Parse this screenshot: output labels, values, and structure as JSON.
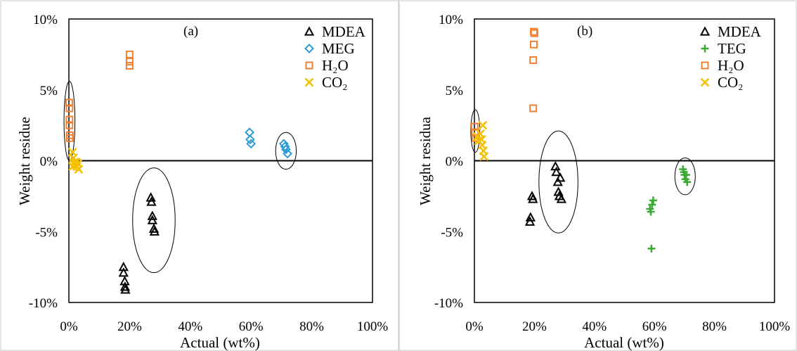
{
  "chart_data": [
    {
      "type": "scatter",
      "panel_label": "(a)",
      "xlabel": "Actual (wt%)",
      "ylabel": "Weight residue",
      "xlim": [
        0,
        100
      ],
      "ylim": [
        -10,
        10
      ],
      "x_ticks": [
        "0%",
        "20%",
        "40%",
        "60%",
        "80%",
        "100%"
      ],
      "y_ticks": [
        "10%",
        "5%",
        "0%",
        "-5%",
        "-10%"
      ],
      "legend_position": "top-right",
      "series": [
        {
          "name": "MDEA",
          "marker": "triangle",
          "color": "#000000",
          "points": [
            {
              "x": 18,
              "y": -7.5
            },
            {
              "x": 18,
              "y": -7.9
            },
            {
              "x": 18.4,
              "y": -8.5
            },
            {
              "x": 18.5,
              "y": -8.9
            },
            {
              "x": 18.6,
              "y": -9.1
            },
            {
              "x": 27,
              "y": -2.6
            },
            {
              "x": 27.2,
              "y": -2.9
            },
            {
              "x": 27.5,
              "y": -3.9
            },
            {
              "x": 27.5,
              "y": -4.2
            },
            {
              "x": 28,
              "y": -4.8
            },
            {
              "x": 28.2,
              "y": -5.0
            }
          ]
        },
        {
          "name": "MEG",
          "marker": "diamond",
          "color": "#2e9ad6",
          "points": [
            {
              "x": 59.5,
              "y": 2.0
            },
            {
              "x": 59.7,
              "y": 1.5
            },
            {
              "x": 60,
              "y": 1.2
            },
            {
              "x": 70.8,
              "y": 1.2
            },
            {
              "x": 71.2,
              "y": 1.0
            },
            {
              "x": 71.5,
              "y": 0.8
            },
            {
              "x": 72,
              "y": 0.5
            }
          ]
        },
        {
          "name": "H₂O",
          "marker": "square",
          "color": "#f08030",
          "points": [
            {
              "x": 0.1,
              "y": 4.1
            },
            {
              "x": 0.2,
              "y": 3.7
            },
            {
              "x": 0.2,
              "y": 2.9
            },
            {
              "x": 0.2,
              "y": 2.5
            },
            {
              "x": 0.3,
              "y": 1.8
            },
            {
              "x": 0.3,
              "y": 1.6
            },
            {
              "x": 20,
              "y": 7.5
            },
            {
              "x": 20,
              "y": 7.0
            },
            {
              "x": 20,
              "y": 6.7
            }
          ]
        },
        {
          "name": "CO₂",
          "marker": "x",
          "color": "#f5c000",
          "points": [
            {
              "x": 1.2,
              "y": 0.6
            },
            {
              "x": 1.5,
              "y": 0.2
            },
            {
              "x": 1.8,
              "y": -0.1
            },
            {
              "x": 2.0,
              "y": -0.3
            },
            {
              "x": 2.4,
              "y": -0.1
            },
            {
              "x": 2.6,
              "y": -0.4
            },
            {
              "x": 3.0,
              "y": -0.2
            },
            {
              "x": 3.2,
              "y": -0.6
            },
            {
              "x": 1.3,
              "y": -0.4
            }
          ]
        }
      ],
      "annotations": [
        {
          "shape": "ellipse",
          "cx": 0.2,
          "cy": 2.8,
          "rx": 1.8,
          "ry": 2.8
        },
        {
          "shape": "ellipse",
          "cx": 28,
          "cy": -4.2,
          "rx": 7,
          "ry": 3.7
        },
        {
          "shape": "ellipse",
          "cx": 71.5,
          "cy": 0.7,
          "rx": 3.4,
          "ry": 1.3
        }
      ]
    },
    {
      "type": "scatter",
      "panel_label": "(b)",
      "xlabel": "Actual (wt%)",
      "ylabel": "Weight residua",
      "xlim": [
        0,
        100
      ],
      "ylim": [
        -10,
        10
      ],
      "x_ticks": [
        "0%",
        "20%",
        "40%",
        "60%",
        "80%",
        "100%"
      ],
      "y_ticks": [
        "10%",
        "5%",
        "0%",
        "-5%",
        "-10%"
      ],
      "legend_position": "top-right",
      "series": [
        {
          "name": "MDEA",
          "marker": "triangle",
          "color": "#000000",
          "points": [
            {
              "x": 18.5,
              "y": -4.3
            },
            {
              "x": 18.7,
              "y": -4.0
            },
            {
              "x": 19.2,
              "y": -2.5
            },
            {
              "x": 19.5,
              "y": -2.7
            },
            {
              "x": 27,
              "y": -0.4
            },
            {
              "x": 27.3,
              "y": -0.8
            },
            {
              "x": 27.8,
              "y": -1.5
            },
            {
              "x": 28,
              "y": -2.2
            },
            {
              "x": 28.3,
              "y": -2.5
            },
            {
              "x": 28.6,
              "y": -1.2
            },
            {
              "x": 29,
              "y": -2.7
            }
          ]
        },
        {
          "name": "TEG",
          "marker": "plus",
          "color": "#3aaa35",
          "points": [
            {
              "x": 58.5,
              "y": -3.4
            },
            {
              "x": 58.8,
              "y": -3.6
            },
            {
              "x": 59.2,
              "y": -3.1
            },
            {
              "x": 59.6,
              "y": -2.8
            },
            {
              "x": 59,
              "y": -6.2
            },
            {
              "x": 69.5,
              "y": -0.6
            },
            {
              "x": 69.8,
              "y": -0.8
            },
            {
              "x": 70,
              "y": -1.0
            },
            {
              "x": 70.3,
              "y": -1.3
            },
            {
              "x": 70.6,
              "y": -1.0
            },
            {
              "x": 70.9,
              "y": -1.5
            }
          ]
        },
        {
          "name": "H₂O",
          "marker": "square",
          "color": "#f08030",
          "points": [
            {
              "x": 0.1,
              "y": 2.4
            },
            {
              "x": 0.2,
              "y": 2.0
            },
            {
              "x": 0.3,
              "y": 1.6
            },
            {
              "x": 19.8,
              "y": 9.1
            },
            {
              "x": 20,
              "y": 9.0
            },
            {
              "x": 19.8,
              "y": 8.2
            },
            {
              "x": 19.6,
              "y": 7.1
            },
            {
              "x": 19.6,
              "y": 3.7
            }
          ]
        },
        {
          "name": "CO₂",
          "marker": "x",
          "color": "#f5c000",
          "points": [
            {
              "x": 1.0,
              "y": 1.7
            },
            {
              "x": 1.4,
              "y": 1.4
            },
            {
              "x": 2.0,
              "y": 1.9
            },
            {
              "x": 2.6,
              "y": 1.1
            },
            {
              "x": 2.8,
              "y": 2.5
            },
            {
              "x": 3.0,
              "y": 0.7
            },
            {
              "x": 3.2,
              "y": 0.3
            },
            {
              "x": 2.4,
              "y": 1.5
            }
          ]
        }
      ],
      "annotations": [
        {
          "shape": "ellipse",
          "cx": 0.3,
          "cy": 2.1,
          "rx": 1.5,
          "ry": 1.5
        },
        {
          "shape": "ellipse",
          "cx": 28,
          "cy": -1.5,
          "rx": 6.5,
          "ry": 3.6
        },
        {
          "shape": "ellipse",
          "cx": 70.2,
          "cy": -1.1,
          "rx": 3.4,
          "ry": 1.3
        }
      ]
    }
  ]
}
